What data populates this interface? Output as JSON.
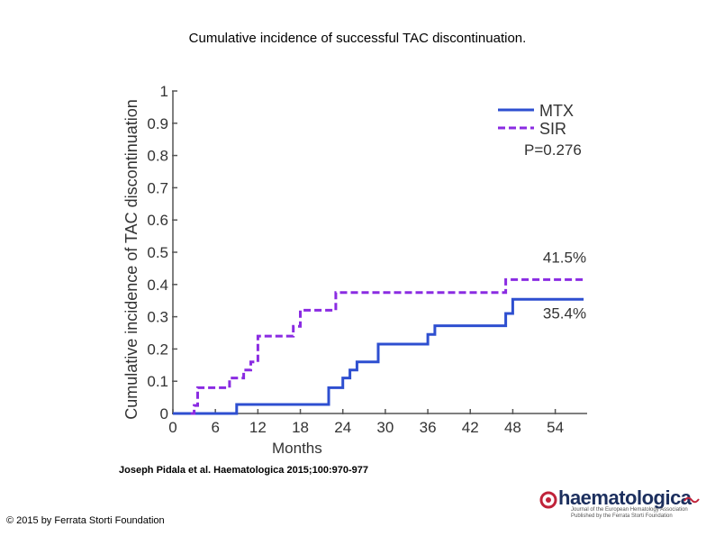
{
  "header": {
    "title": "Cumulative incidence of successful TAC discontinuation."
  },
  "footer": {
    "citation": "Joseph Pidala et al. Haematologica 2015;100:970-977",
    "copyright": "© 2015 by Ferrata Storti Foundation"
  },
  "logo": {
    "name": "haematologica",
    "subtitle_line1": "Journal of the European Hematology Association",
    "subtitle_line2": "Published by the Ferrata Storti Foundation"
  },
  "chart_data": {
    "type": "line",
    "title": "",
    "xlabel": "Months",
    "ylabel": "Cumulative incidence of TAC discontinuation",
    "xlim": [
      0,
      60
    ],
    "ylim": [
      0,
      1
    ],
    "x_ticks": [
      0,
      6,
      12,
      18,
      24,
      30,
      36,
      42,
      48,
      54
    ],
    "y_ticks": [
      0,
      0.1,
      0.2,
      0.3,
      0.4,
      0.5,
      0.6,
      0.7,
      0.8,
      0.9,
      1
    ],
    "y_tick_labels": [
      "0",
      "0.1",
      "0.2",
      "0.3",
      "0.4",
      "0.5",
      "0.6",
      "0.7",
      "0.8",
      "0.9",
      "1"
    ],
    "grid": false,
    "legend_position": "top-right",
    "annotation": "P=0.276",
    "series": [
      {
        "name": "MTX",
        "color": "#2e4fd0",
        "dash": "solid",
        "end_label": "35.4%",
        "points": [
          [
            0,
            0
          ],
          [
            9,
            0
          ],
          [
            9,
            0.028
          ],
          [
            22,
            0.028
          ],
          [
            22,
            0.08
          ],
          [
            24,
            0.08
          ],
          [
            24,
            0.11
          ],
          [
            25,
            0.11
          ],
          [
            25,
            0.135
          ],
          [
            26,
            0.135
          ],
          [
            26,
            0.16
          ],
          [
            29,
            0.16
          ],
          [
            29,
            0.215
          ],
          [
            36,
            0.215
          ],
          [
            36,
            0.245
          ],
          [
            37,
            0.245
          ],
          [
            37,
            0.272
          ],
          [
            47,
            0.272
          ],
          [
            47,
            0.31
          ],
          [
            48,
            0.31
          ],
          [
            48,
            0.354
          ],
          [
            58,
            0.354
          ]
        ]
      },
      {
        "name": "SIR",
        "color": "#8a2be2",
        "dash": "dashed",
        "end_label": "41.5%",
        "points": [
          [
            2.5,
            0
          ],
          [
            3,
            0
          ],
          [
            3,
            0.025
          ],
          [
            3.5,
            0.025
          ],
          [
            3.5,
            0.08
          ],
          [
            8,
            0.08
          ],
          [
            8,
            0.11
          ],
          [
            10,
            0.11
          ],
          [
            10,
            0.135
          ],
          [
            11,
            0.135
          ],
          [
            11,
            0.16
          ],
          [
            12,
            0.16
          ],
          [
            12,
            0.24
          ],
          [
            17,
            0.24
          ],
          [
            17,
            0.27
          ],
          [
            18,
            0.27
          ],
          [
            18,
            0.32
          ],
          [
            23,
            0.32
          ],
          [
            23,
            0.375
          ],
          [
            47,
            0.375
          ],
          [
            47,
            0.415
          ],
          [
            58,
            0.415
          ]
        ]
      }
    ]
  }
}
